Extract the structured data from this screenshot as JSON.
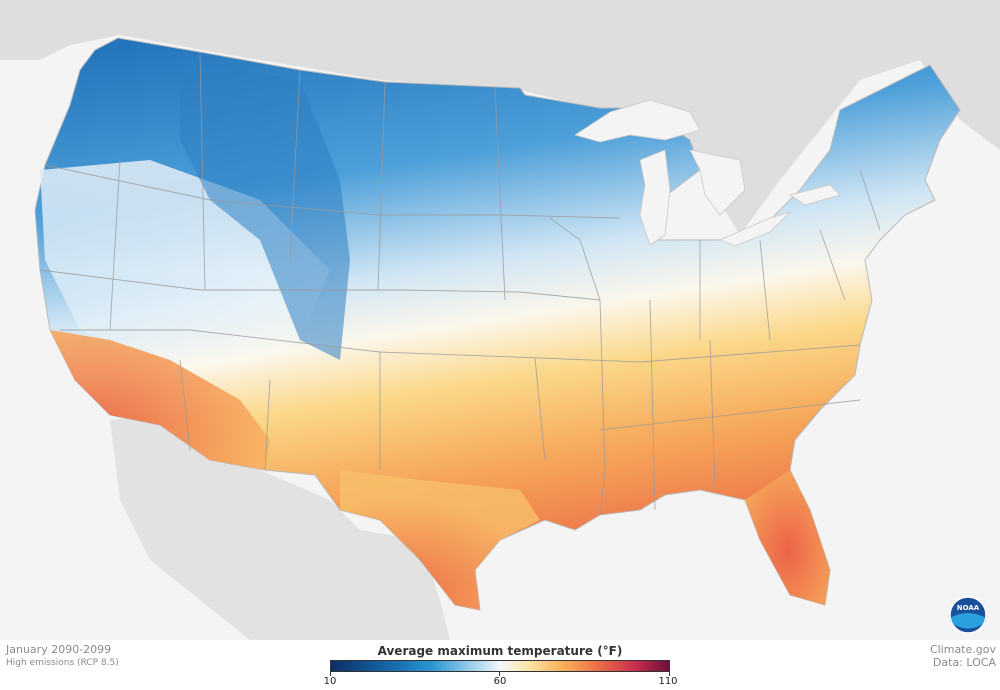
{
  "map": {
    "region": "Contiguous United States",
    "variable": "Average maximum temperature",
    "scenario_period": "January 2090-2099",
    "colors": {
      "ocean": "#f4f4f4",
      "land_outside": "#dedede",
      "state_borders": "#9a9a9a",
      "cold": "#1466a8",
      "neutral": "#f2f8fc",
      "warm": "#ee7447"
    }
  },
  "footer": {
    "period": "January 2090-2099",
    "scenario": "High emissions (RCP 8.5)",
    "credit": "Climate.gov",
    "source": "Data: LOCA"
  },
  "legend": {
    "title": "Average maximum temperature (°F)",
    "min": 10,
    "mid": 60,
    "max": 110,
    "tick_labels": [
      "10",
      "60",
      "110"
    ],
    "stops": [
      {
        "value": 10,
        "color": "#0d2e63"
      },
      {
        "value": 27,
        "color": "#1466a8"
      },
      {
        "value": 40,
        "color": "#2b96d3"
      },
      {
        "value": 50,
        "color": "#8cc6e8"
      },
      {
        "value": 60,
        "color": "#f2f8fc"
      },
      {
        "value": 68,
        "color": "#fbe7ab"
      },
      {
        "value": 78,
        "color": "#f8b45c"
      },
      {
        "value": 88,
        "color": "#ee7447"
      },
      {
        "value": 100,
        "color": "#c72e4e"
      },
      {
        "value": 110,
        "color": "#6e0f3a"
      }
    ]
  },
  "logo": {
    "text": "NOAA",
    "icon": "noaa-logo-icon"
  }
}
